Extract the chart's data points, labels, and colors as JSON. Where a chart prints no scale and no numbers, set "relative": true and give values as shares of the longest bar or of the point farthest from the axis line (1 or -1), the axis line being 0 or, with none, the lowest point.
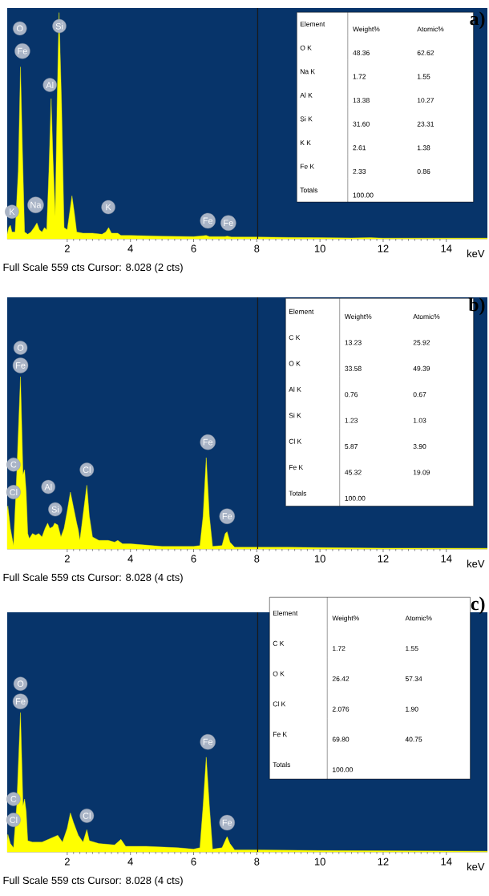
{
  "chart_data": [
    {
      "type": "area",
      "title": "a)",
      "xlabel": "keV",
      "relative": true,
      "color": "#ffff00",
      "xlim": [
        0.1,
        15.3
      ],
      "xticks": [
        2,
        4,
        6,
        8,
        10,
        12,
        14
      ],
      "x": [
        0.1,
        0.15,
        0.2,
        0.25,
        0.35,
        0.45,
        0.52,
        0.58,
        0.65,
        0.75,
        0.85,
        0.95,
        1.04,
        1.12,
        1.2,
        1.28,
        1.35,
        1.42,
        1.49,
        1.55,
        1.62,
        1.68,
        1.74,
        1.82,
        1.9,
        2.0,
        2.08,
        2.15,
        2.22,
        2.3,
        2.5,
        2.8,
        3.1,
        3.22,
        3.31,
        3.4,
        3.6,
        3.7,
        4.0,
        5.0,
        6.0,
        6.4,
        6.5,
        7.0,
        7.06,
        7.2,
        8.0,
        9.0,
        10.0,
        11.0,
        11.6,
        12.0,
        15.3
      ],
      "values": [
        0.02,
        0.05,
        0.06,
        0.03,
        0.03,
        0.3,
        0.76,
        0.4,
        0.03,
        0.02,
        0.03,
        0.05,
        0.07,
        0.04,
        0.03,
        0.05,
        0.04,
        0.3,
        0.62,
        0.35,
        0.1,
        0.6,
        1.0,
        0.6,
        0.05,
        0.04,
        0.12,
        0.19,
        0.12,
        0.03,
        0.025,
        0.025,
        0.02,
        0.03,
        0.05,
        0.025,
        0.025,
        0.015,
        0.015,
        0.012,
        0.01,
        0.015,
        0.01,
        0.01,
        0.012,
        0.008,
        0.008,
        0.006,
        0.005,
        0.004,
        0.005,
        0.003,
        0.003
      ],
      "ref_lines": [
        {
          "axis": "x",
          "value": 8.028,
          "color": "#1a1a1a"
        }
      ],
      "annotations": [
        "Full Scale 559 cts Cursor: 8.028  (2 cts)",
        "Element",
        "Weight%",
        "Atomic%",
        "O K",
        "48.36",
        "62.62",
        "Na K",
        "1.72",
        "1.55",
        "Al K",
        "13.38",
        "10.27",
        "Si K",
        "31.60",
        "23.31",
        "K K",
        "2.61",
        "1.38",
        "Fe K",
        "2.33",
        "0.86",
        "Totals",
        "100.00",
        {
          "text": "O",
          "x": 0.5,
          "y": 0.93
        },
        {
          "text": "Fe",
          "x": 0.58,
          "y": 0.83
        },
        {
          "text": "Si",
          "x": 1.75,
          "y": 0.94
        },
        {
          "text": "Al",
          "x": 1.45,
          "y": 0.68
        },
        {
          "text": "K",
          "x": 0.25,
          "y": 0.12
        },
        {
          "text": "Na",
          "x": 1.0,
          "y": 0.15
        },
        {
          "text": "K",
          "x": 3.3,
          "y": 0.14
        },
        {
          "text": "Fe",
          "x": 6.45,
          "y": 0.08
        },
        {
          "text": "Fe",
          "x": 7.1,
          "y": 0.07
        }
      ]
    },
    {
      "type": "area",
      "title": "b)",
      "xlabel": "keV",
      "relative": true,
      "color": "#ffff00",
      "xlim": [
        0.1,
        15.3
      ],
      "xticks": [
        2,
        4,
        6,
        8,
        10,
        12,
        14
      ],
      "x": [
        0.1,
        0.12,
        0.2,
        0.3,
        0.4,
        0.52,
        0.6,
        0.65,
        0.7,
        0.75,
        0.8,
        0.9,
        1.0,
        1.1,
        1.2,
        1.3,
        1.38,
        1.45,
        1.55,
        1.6,
        1.7,
        1.8,
        1.9,
        2.0,
        2.1,
        2.2,
        2.3,
        2.35,
        2.4,
        2.55,
        2.62,
        2.7,
        2.8,
        3.0,
        3.3,
        3.5,
        3.6,
        3.75,
        4.0,
        5.0,
        6.0,
        6.2,
        6.3,
        6.4,
        6.5,
        6.6,
        6.9,
        7.0,
        7.06,
        7.15,
        7.3,
        8.0,
        9.0,
        10.0,
        12.0,
        15.3
      ],
      "values": [
        0.22,
        0.25,
        0.12,
        0.02,
        0.43,
        1.0,
        0.43,
        0.46,
        0.33,
        0.09,
        0.06,
        0.09,
        0.08,
        0.09,
        0.07,
        0.12,
        0.15,
        0.12,
        0.13,
        0.15,
        0.14,
        0.07,
        0.12,
        0.22,
        0.33,
        0.24,
        0.15,
        0.11,
        0.05,
        0.27,
        0.37,
        0.19,
        0.07,
        0.05,
        0.05,
        0.04,
        0.05,
        0.03,
        0.03,
        0.015,
        0.015,
        0.02,
        0.19,
        0.53,
        0.19,
        0.015,
        0.02,
        0.09,
        0.1,
        0.04,
        0.01,
        0.01,
        0.01,
        0.008,
        0.005,
        0.004
      ],
      "ref_lines": [
        {
          "axis": "x",
          "value": 8.028,
          "color": "#1a1a1a"
        }
      ],
      "annotations": [
        "Full Scale 559 cts Cursor: 8.028  (4 cts)",
        "Element",
        "Weight%",
        "Atomic%",
        "C K",
        "13.23",
        "25.92",
        "O K",
        "33.58",
        "49.39",
        "Al K",
        "0.76",
        "0.67",
        "Si K",
        "1.23",
        "1.03",
        "Cl K",
        "5.87",
        "3.90",
        "Fe K",
        "45.32",
        "19.09",
        "Totals",
        "100.00",
        {
          "text": "Fe",
          "x": 0.52,
          "y": 1.0
        },
        {
          "text": "O",
          "x": 0.52,
          "y": 1.0
        },
        {
          "text": "C",
          "x": 0.3,
          "y": 0.49
        },
        {
          "text": "Cl",
          "x": 0.3,
          "y": 0.33
        },
        {
          "text": "Al",
          "x": 1.4,
          "y": 0.36
        },
        {
          "text": "Si",
          "x": 1.62,
          "y": 0.23
        },
        {
          "text": "Cl",
          "x": 2.62,
          "y": 0.46
        },
        {
          "text": "Fe",
          "x": 6.45,
          "y": 0.62
        },
        {
          "text": "Fe",
          "x": 7.06,
          "y": 0.19
        }
      ]
    },
    {
      "type": "area",
      "title": "c)",
      "xlabel": "keV",
      "relative": true,
      "color": "#ffff00",
      "xlim": [
        0.1,
        15.3
      ],
      "xticks": [
        2,
        4,
        6,
        8,
        10,
        12,
        14
      ],
      "x": [
        0.1,
        0.12,
        0.2,
        0.3,
        0.4,
        0.52,
        0.6,
        0.65,
        0.7,
        0.75,
        0.9,
        1.2,
        1.5,
        1.7,
        1.85,
        2.0,
        2.1,
        2.2,
        2.35,
        2.5,
        2.62,
        2.7,
        3.0,
        3.5,
        3.7,
        3.85,
        4.5,
        5.5,
        6.0,
        6.2,
        6.3,
        6.4,
        6.5,
        6.6,
        6.9,
        7.0,
        7.06,
        7.15,
        7.3,
        8.0,
        10.0,
        15.3
      ],
      "values": [
        0.08,
        0.125,
        0.06,
        0.03,
        0.33,
        1.0,
        0.33,
        0.38,
        0.29,
        0.08,
        0.07,
        0.07,
        0.1,
        0.12,
        0.07,
        0.17,
        0.28,
        0.21,
        0.12,
        0.07,
        0.16,
        0.08,
        0.06,
        0.05,
        0.09,
        0.04,
        0.04,
        0.03,
        0.02,
        0.03,
        0.33,
        0.68,
        0.33,
        0.02,
        0.03,
        0.08,
        0.11,
        0.06,
        0.015,
        0.015,
        0.01,
        0.005
      ],
      "ref_lines": [
        {
          "axis": "x",
          "value": 8.028,
          "color": "#1a1a1a"
        }
      ],
      "annotations": [
        "Full Scale 559 cts Cursor: 8.028  (4 cts)",
        "Element",
        "Weight%",
        "Atomic%",
        "C K",
        "1.72",
        "1.55",
        "O K",
        "26.42",
        "57.34",
        "Cl K",
        "2.076",
        "1.90",
        "Fe K",
        "69.80",
        "40.75",
        "Totals",
        "100.00",
        {
          "text": "Fe",
          "x": 0.52,
          "y": 1.0
        },
        {
          "text": "O",
          "x": 0.52,
          "y": 1.0
        },
        {
          "text": "C",
          "x": 0.3,
          "y": 0.38
        },
        {
          "text": "Cl",
          "x": 0.3,
          "y": 0.23
        },
        {
          "text": "Cl",
          "x": 2.62,
          "y": 0.26
        },
        {
          "text": "Fe",
          "x": 6.45,
          "y": 0.79
        },
        {
          "text": "Fe",
          "x": 7.06,
          "y": 0.21
        }
      ]
    }
  ]
}
